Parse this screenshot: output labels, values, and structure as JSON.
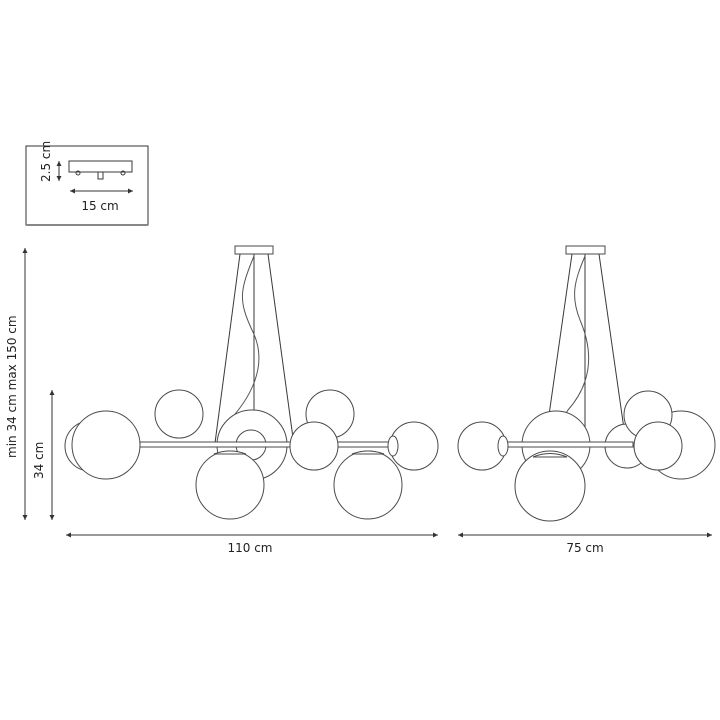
{
  "canopy_inset": {
    "height_label": "2.5 cm",
    "width_label": "15 cm"
  },
  "front_view": {
    "suspension_label": "min 34 cm max 150 cm",
    "height_label": "34 cm",
    "width_label": "110 cm"
  },
  "side_view": {
    "width_label": "75 cm"
  },
  "colors": {
    "line": "#3a3a3a",
    "background": "#ffffff"
  }
}
